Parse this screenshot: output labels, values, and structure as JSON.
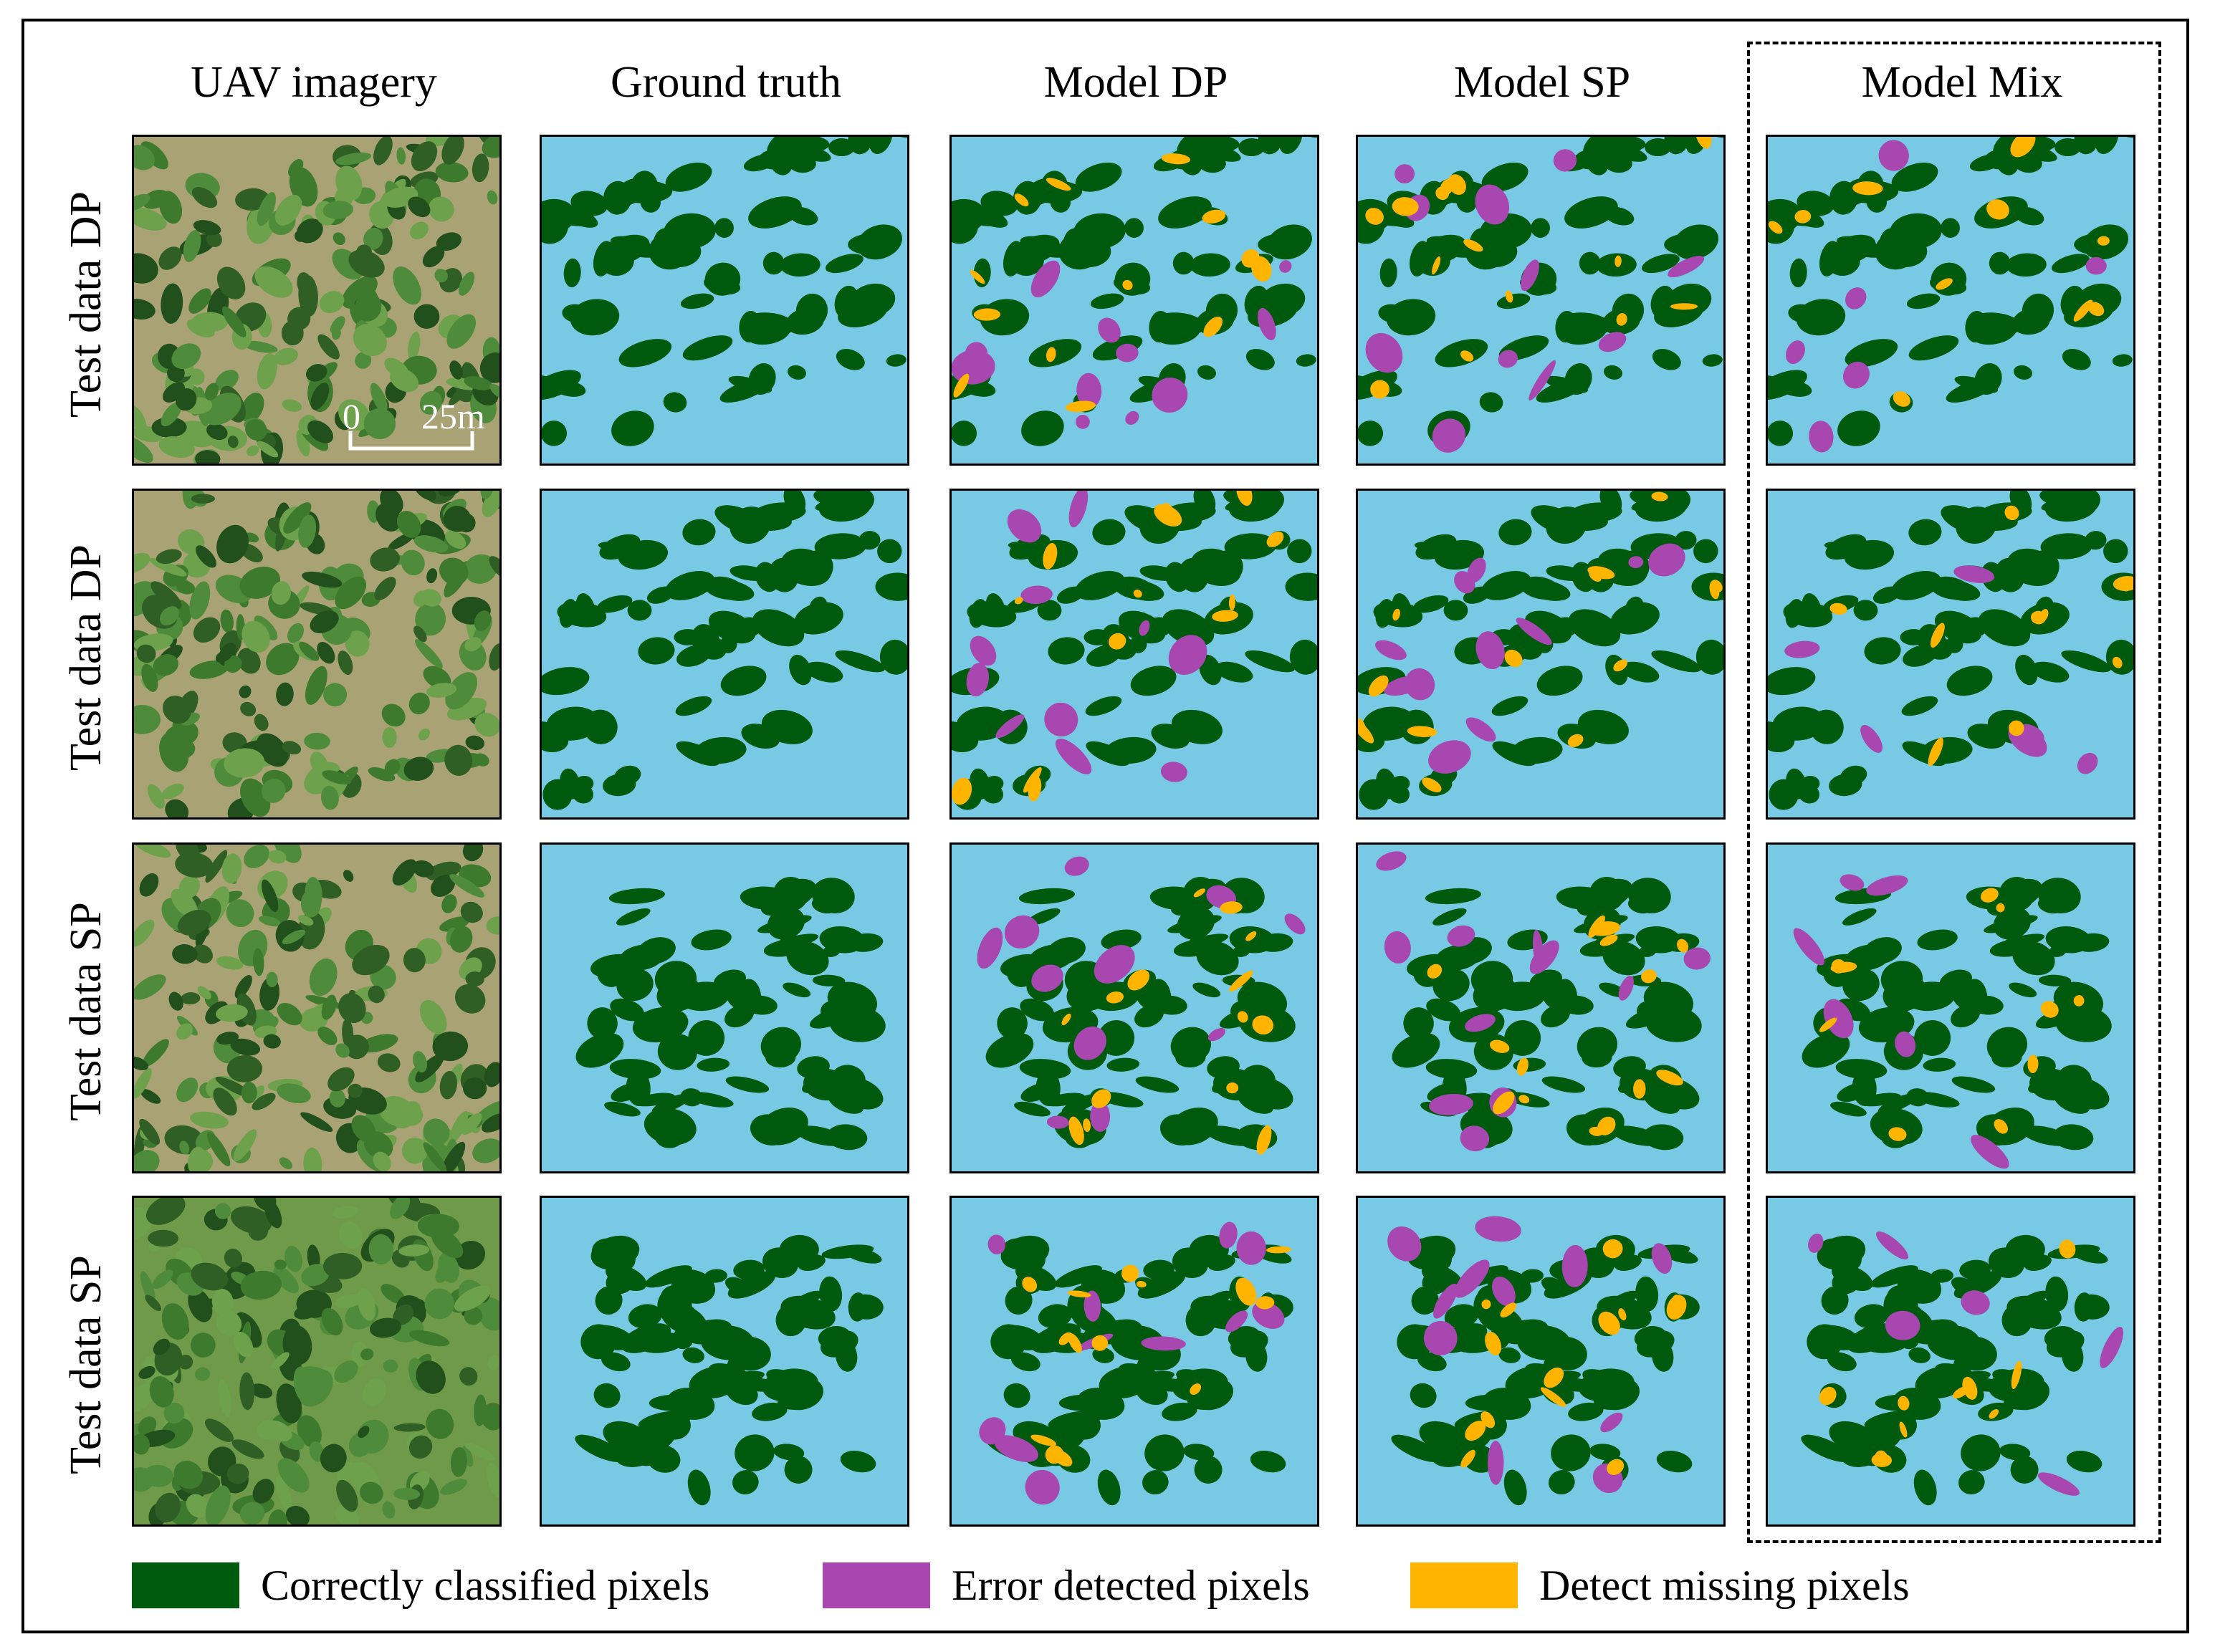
{
  "columns": [
    "UAV imagery",
    "Ground truth",
    "Model DP",
    "Model SP",
    "Model Mix"
  ],
  "rows": [
    "Test data DP",
    "Test data DP",
    "Test data SP",
    "Test data SP"
  ],
  "scale_bar": {
    "zero": "0",
    "length": "25m"
  },
  "legend": [
    {
      "label": "Correctly classified pixels",
      "color": "#005a0e"
    },
    {
      "label": "Error detected pixels",
      "color": "#a847b0"
    },
    {
      "label": "Detect missing pixels",
      "color": "#ffb400"
    }
  ],
  "colors": {
    "background": "#78c9e3",
    "correct": "#005a0e",
    "error": "#a847b0",
    "missing": "#ffb400"
  }
}
